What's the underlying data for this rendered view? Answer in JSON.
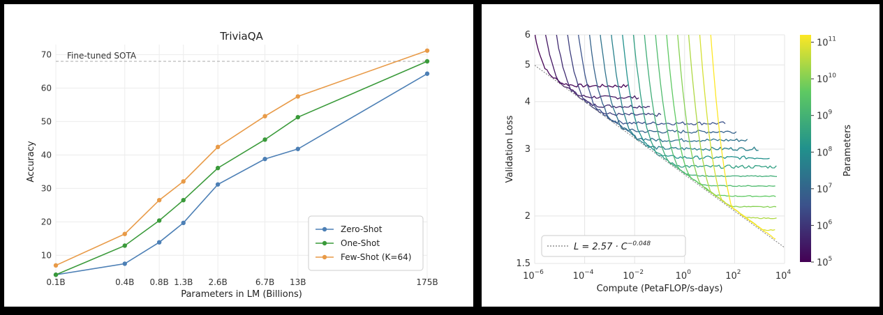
{
  "chart_data": [
    {
      "type": "line",
      "title": "TriviaQA",
      "xlabel": "Parameters in LM (Billions)",
      "ylabel": "Accuracy",
      "categories": [
        "0.1B",
        "0.4B",
        "0.8B",
        "1.3B",
        "2.6B",
        "6.7B",
        "13B",
        "175B"
      ],
      "x_scale": "log",
      "x_values_billions": [
        0.1,
        0.4,
        0.8,
        1.3,
        2.6,
        6.7,
        13,
        175
      ],
      "yticks": [
        "10",
        "20",
        "30",
        "40",
        "50",
        "60",
        "70"
      ],
      "ylim": [
        3,
        73
      ],
      "grid": true,
      "legend_position": "bottom-right",
      "reference_line": {
        "label": "Fine-tuned SOTA",
        "value": 68
      },
      "series": [
        {
          "name": "Zero-Shot",
          "color": "#4c7fb5",
          "values": [
            4.2,
            7.5,
            13.9,
            19.7,
            31.2,
            38.8,
            41.8,
            64.3
          ]
        },
        {
          "name": "One-Shot",
          "color": "#3a9a3a",
          "values": [
            4.2,
            12.9,
            20.4,
            26.5,
            36.1,
            44.6,
            51.3,
            68.0
          ]
        },
        {
          "name": "Few-Shot (K=64)",
          "color": "#e89a47",
          "values": [
            7.0,
            16.4,
            26.5,
            32.1,
            42.4,
            51.6,
            57.5,
            71.2
          ]
        }
      ]
    },
    {
      "type": "line",
      "xlabel": "Compute (PetaFLOP/s-days)",
      "ylabel": "Validation Loss",
      "x_scale": "log",
      "y_scale": "log",
      "xlim_exponent": [
        -6,
        4
      ],
      "xtick_base": "10",
      "xtick_exponents": [
        "−6",
        "−4",
        "−2",
        "0",
        "2",
        "4"
      ],
      "ylim": [
        1.5,
        6
      ],
      "yticks": [
        "1.5",
        "2",
        "3",
        "4",
        "5",
        "6"
      ],
      "grid": true,
      "legend_position": "bottom-left",
      "fit_line": {
        "label_main": "L = 2.57 · C",
        "label_exp": "−0.048",
        "a": 2.57,
        "b": -0.048
      },
      "colorbar": {
        "label": "Parameters",
        "scale": "log",
        "tick_base": "10",
        "tick_exponents": [
          "5",
          "6",
          "7",
          "8",
          "9",
          "10",
          "11"
        ],
        "range_exponent": [
          5,
          11.2
        ]
      },
      "series_colormap": "viridis",
      "series_count": 17
    }
  ]
}
